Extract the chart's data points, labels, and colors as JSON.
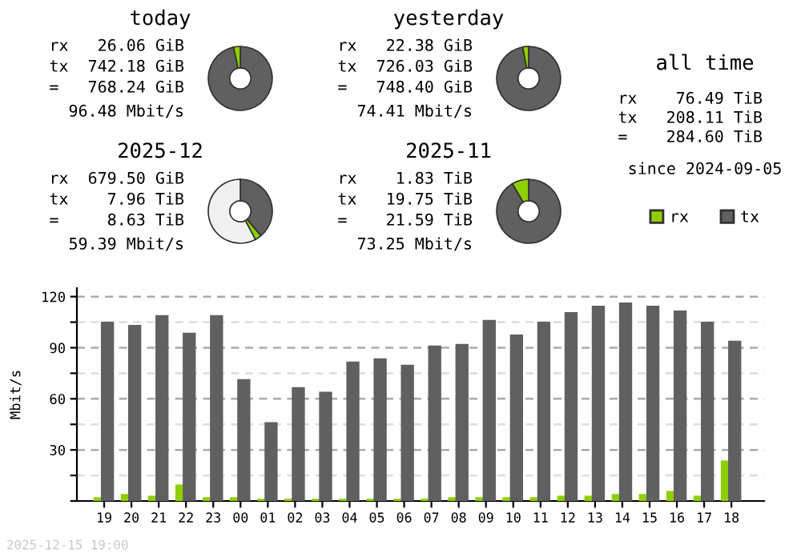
{
  "chart_data": [
    {
      "type": "donut",
      "title": "today",
      "annotations": [
        "rx   26.06 GiB",
        "tx  742.18 GiB",
        "=   768.24 GiB",
        "96.48 Mbit/s"
      ],
      "categories": [
        null,
        null
      ],
      "values": [
        96.61,
        3.39
      ],
      "colors": [
        "#606060",
        "#8fcf00"
      ]
    },
    {
      "type": "donut",
      "title": "yesterday",
      "annotations": [
        "rx   22.38 GiB",
        "tx  726.03 GiB",
        "=   748.40 GiB",
        "74.41 Mbit/s"
      ],
      "categories": [
        null,
        null
      ],
      "values": [
        97.01,
        2.99
      ],
      "colors": [
        "#606060",
        "#8fcf00"
      ]
    },
    {
      "type": "other",
      "title": "all time",
      "annotations": [
        "rx    76.49 TiB",
        "tx   208.11 TiB",
        "=    284.60 TiB",
        "since 2024-09-05"
      ]
    },
    {
      "type": "donut",
      "title": "2025-12",
      "annotations": [
        "rx  679.50 GiB",
        "tx    7.96 TiB",
        "=     8.63 TiB",
        "59.39 Mbit/s"
      ],
      "categories": [
        null,
        null,
        null
      ],
      "values": [
        38.9,
        3.3,
        57.8
      ],
      "colors": [
        "#606060",
        "#8fcf00",
        "#f0f0f0"
      ]
    },
    {
      "type": "donut",
      "title": "2025-11",
      "annotations": [
        "rx    1.83 TiB",
        "tx   19.75 TiB",
        "=    21.59 TiB",
        "73.25 Mbit/s"
      ],
      "categories": [
        null,
        null
      ],
      "values": [
        91.52,
        8.48
      ],
      "colors": [
        "#606060",
        "#8fcf00"
      ]
    },
    {
      "type": "bar",
      "ylabel": "Mbit/s",
      "annotations": [
        "2025-12-15 19:00"
      ],
      "legend": "top right",
      "grid": "y",
      "categories": [
        "19",
        "20",
        "21",
        "22",
        "23",
        "00",
        "01",
        "02",
        "03",
        "04",
        "05",
        "06",
        "07",
        "08",
        "09",
        "10",
        "11",
        "12",
        "13",
        "14",
        "15",
        "16",
        "17",
        "18"
      ],
      "ylim": [
        0,
        125
      ],
      "yticks": [
        {
          "value": 0,
          "label": null
        },
        {
          "value": 15,
          "label": null
        },
        30,
        {
          "value": 45,
          "label": null
        },
        60,
        {
          "value": 75,
          "label": null
        },
        90,
        {
          "value": 105,
          "label": null
        },
        120
      ],
      "series": [
        {
          "name": "rx",
          "color": "#8fcf00",
          "values": [
            2.2,
            4.1,
            3.1,
            9.7,
            2.2,
            2.2,
            1.3,
            1.3,
            1.3,
            1.3,
            1.3,
            1.3,
            1.3,
            2.2,
            2.2,
            2.2,
            2.2,
            3.1,
            3.1,
            4.1,
            4.1,
            5.9,
            3.1,
            23.8
          ]
        },
        {
          "name": "tx",
          "color": "#606060",
          "values": [
            105.3,
            103.4,
            109.1,
            98.8,
            109.1,
            71.6,
            46.3,
            66.9,
            64.1,
            81.9,
            83.8,
            80.0,
            91.3,
            92.2,
            106.3,
            97.8,
            105.3,
            110.9,
            114.7,
            116.6,
            114.7,
            111.9,
            105.3,
            94.1
          ]
        }
      ]
    }
  ]
}
